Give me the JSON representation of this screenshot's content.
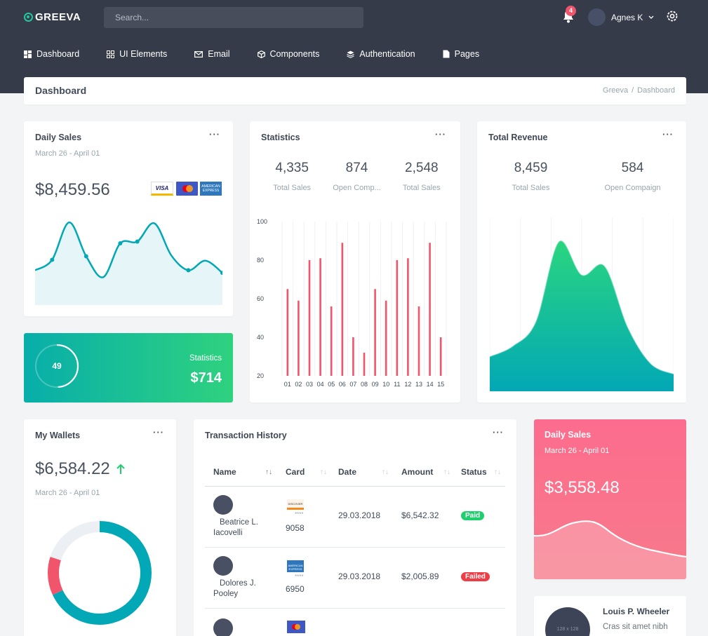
{
  "header": {
    "brand": "GREEVA",
    "search_placeholder": "Search...",
    "notification_count": "4",
    "user_name": "Agnes K",
    "nav": [
      {
        "label": "Dashboard",
        "icon": "dashboard-icon"
      },
      {
        "label": "UI Elements",
        "icon": "ui-elements-icon"
      },
      {
        "label": "Email",
        "icon": "email-icon"
      },
      {
        "label": "Components",
        "icon": "components-icon"
      },
      {
        "label": "Authentication",
        "icon": "layers-icon"
      },
      {
        "label": "Pages",
        "icon": "pages-icon"
      }
    ]
  },
  "breadcrumb": {
    "title": "Dashboard",
    "trail": [
      "Greeva",
      "Dashboard"
    ]
  },
  "daily_sales": {
    "title": "Daily Sales",
    "date_range": "March 26 - April 01",
    "amount": "$8,459.56",
    "cards": [
      "VISA",
      "mastercard",
      "AMERICAN EXPRESS"
    ],
    "menu": "···"
  },
  "stats_teal": {
    "progress": "49",
    "label": "Statistics",
    "value": "$714",
    "progress_fraction": 0.49
  },
  "statistics": {
    "title": "Statistics",
    "menu": "···",
    "stats": [
      {
        "value": "4,335",
        "label": "Total Sales"
      },
      {
        "value": "874",
        "label": "Open Comp..."
      },
      {
        "value": "2,548",
        "label": "Total Sales"
      }
    ]
  },
  "total_revenue": {
    "title": "Total Revenue",
    "menu": "···",
    "stats": [
      {
        "value": "8,459",
        "label": "Total Sales"
      },
      {
        "value": "584",
        "label": "Open Compaign"
      }
    ]
  },
  "wallets": {
    "title": "My Wallets",
    "menu": "···",
    "amount": "$6,584.22",
    "date_range": "March 26 - April 01"
  },
  "transactions": {
    "title": "Transaction History",
    "menu": "···",
    "columns": [
      "Name",
      "Card",
      "Date",
      "Amount",
      "Status"
    ],
    "rows": [
      {
        "name": "Beatrice L. Iacovelli",
        "card_type": "DISCOVER",
        "card_mask": "****",
        "card_last": "9058",
        "date": "29.03.2018",
        "amount": "$6,542.32",
        "status": "Paid"
      },
      {
        "name": "Dolores J. Pooley",
        "card_type": "AMERICAN EXPRESS",
        "card_mask": "****",
        "card_last": "6950",
        "date": "29.03.2018",
        "amount": "$2,005.89",
        "status": "Failed"
      }
    ]
  },
  "daily_sales_pink": {
    "title": "Daily Sales",
    "date_range": "March 26 - April 01",
    "amount": "$3,558.48"
  },
  "profile": {
    "name": "Louis P. Wheeler",
    "text": "Cras sit amet nibh",
    "avatar_label": "128 x 128"
  },
  "colors": {
    "topbar": "#353b48",
    "teal": "#02a8b5",
    "green": "#2fd27e",
    "pink": "#f1556c",
    "paid": "#1fcf6e",
    "failed": "#ef3d47"
  },
  "chart_data": [
    {
      "type": "area",
      "title": "Daily Sales",
      "x": [
        1,
        2,
        3,
        4,
        5,
        6,
        7,
        8,
        9,
        10,
        11,
        12
      ],
      "series": [
        {
          "values": [
            40,
            52,
            95,
            56,
            32,
            71,
            73,
            94,
            57,
            40,
            51,
            37
          ]
        }
      ],
      "ylim": [
        0,
        100
      ],
      "grid": false
    },
    {
      "type": "bar",
      "categories": [
        "01",
        "02",
        "03",
        "04",
        "05",
        "06",
        "07",
        "08",
        "09",
        "10",
        "11",
        "12",
        "13",
        "14",
        "15"
      ],
      "values": [
        65,
        59,
        80,
        81,
        56,
        89,
        40,
        32,
        65,
        59,
        80,
        81,
        56,
        89,
        40
      ],
      "yticks": [
        20,
        40,
        60,
        80,
        100
      ],
      "ylim": [
        20,
        100
      ],
      "grid": true
    },
    {
      "type": "area",
      "title": "Total Revenue",
      "x": [
        1,
        2,
        3,
        4,
        5,
        6,
        7,
        8,
        9
      ],
      "series": [
        {
          "values": [
            20,
            26,
            40,
            86,
            67,
            72,
            37,
            16,
            10
          ]
        }
      ],
      "ylim": [
        0,
        100
      ],
      "grid": true
    },
    {
      "type": "pie",
      "categories": [
        "Teal",
        "Pink",
        "Gray"
      ],
      "values": [
        68,
        12,
        20
      ]
    }
  ]
}
